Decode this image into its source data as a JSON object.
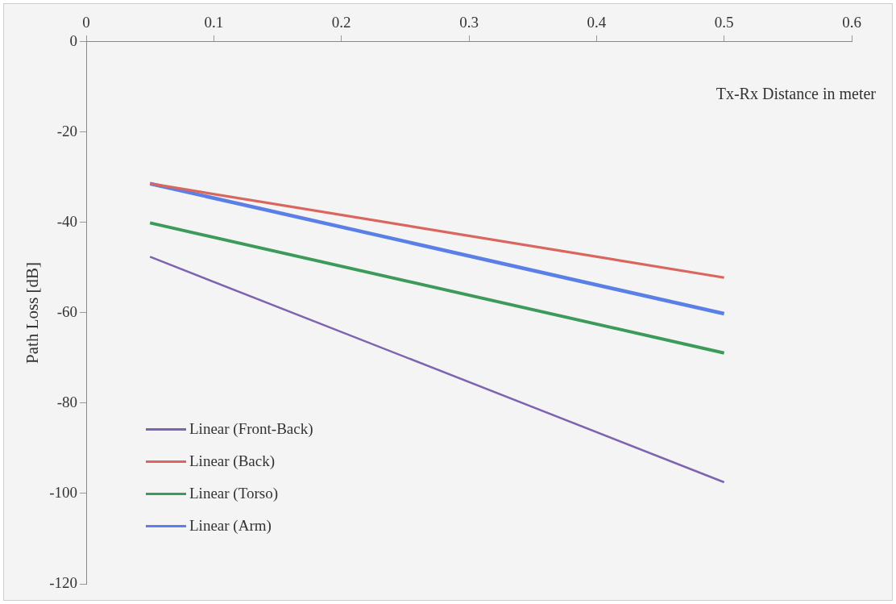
{
  "chart_data": {
    "type": "line",
    "xlabel": "Tx-Rx Distance in meter",
    "ylabel": "Path Loss [dB]",
    "xlim": [
      0,
      0.6
    ],
    "xticks": [
      0,
      0.1,
      0.2,
      0.3,
      0.4,
      0.5,
      0.6
    ],
    "ylim": [
      -120,
      0
    ],
    "yticks": [
      -120,
      -100,
      -80,
      -60,
      -40,
      -20,
      0
    ],
    "grid": false,
    "legend": "bottom left",
    "marker": "none",
    "line_style": "solid",
    "x": [
      0.05,
      0.5
    ],
    "series": [
      {
        "name": "Linear (Front-Back)",
        "color": "#7e63b0",
        "values": [
          -47.6,
          -97.5
        ]
      },
      {
        "name": "Linear (Back)",
        "color": "#d9665f",
        "values": [
          -31.4,
          -52.2
        ]
      },
      {
        "name": "Linear (Torso)",
        "color": "#3c9a5a",
        "values": [
          -40.1,
          -68.9
        ]
      },
      {
        "name": "Linear (Arm)",
        "color": "#5a7fe6",
        "values": [
          -31.4,
          -60.2
        ]
      }
    ]
  }
}
